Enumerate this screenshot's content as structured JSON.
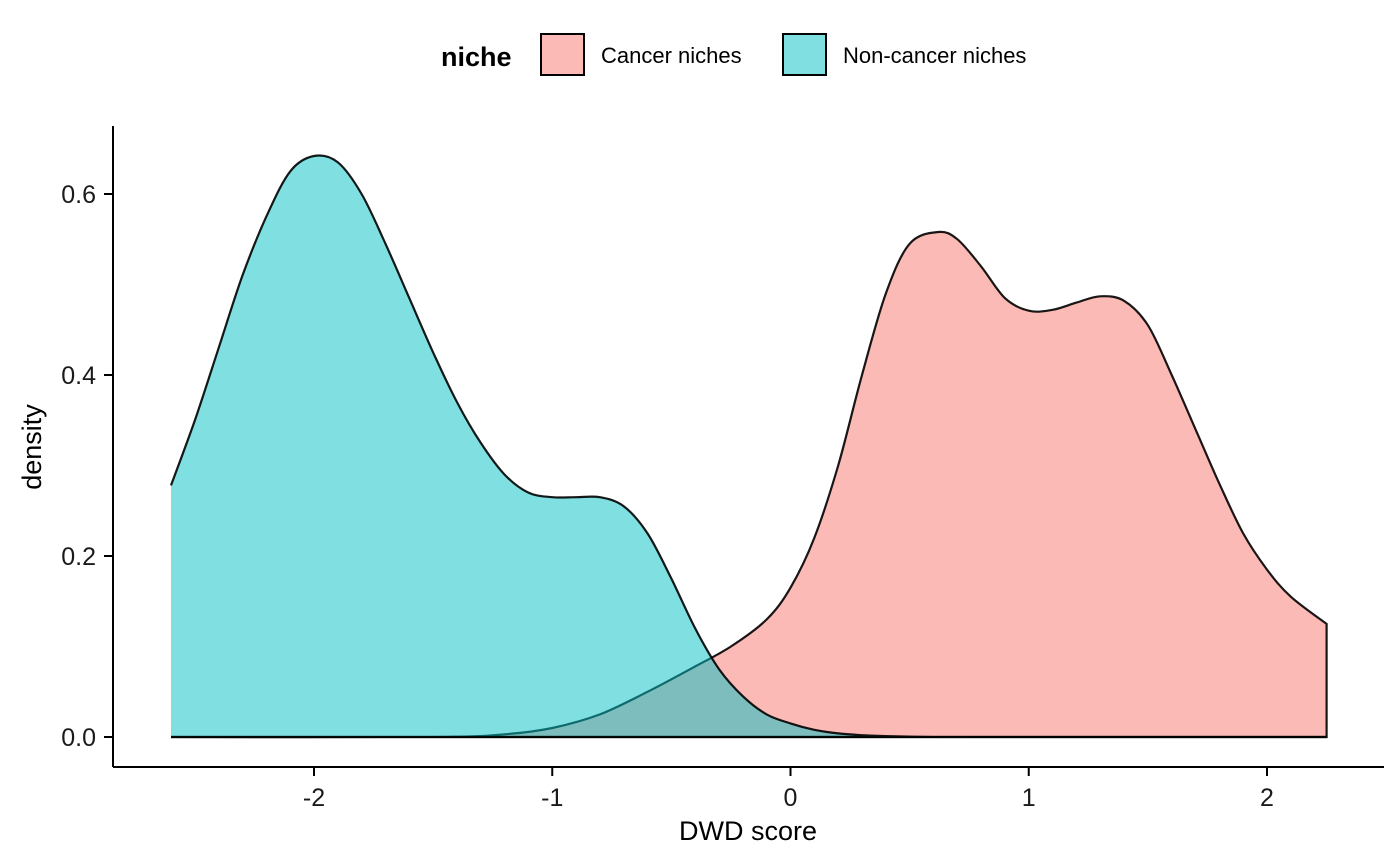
{
  "chart_data": {
    "type": "area",
    "xlabel": "DWD score",
    "ylabel": "density",
    "xlim": [
      -2.6,
      2.25
    ],
    "ylim": [
      0,
      0.66
    ],
    "x_ticks": [
      -2,
      -1,
      0,
      1,
      2
    ],
    "x_tick_labels": [
      "-2",
      "-1",
      "0",
      "1",
      "2"
    ],
    "y_ticks": [
      0.0,
      0.2,
      0.4,
      0.6
    ],
    "y_tick_labels": [
      "0.0",
      "0.2",
      "0.4",
      "0.6"
    ],
    "grid": false,
    "legend": {
      "title": "niche",
      "placement": "top"
    },
    "series": [
      {
        "name": "Cancer niches",
        "color": "#F8766D",
        "fill_opacity": 0.5,
        "x": [
          -2.6,
          -1.5,
          -1.2,
          -1.0,
          -0.8,
          -0.6,
          -0.4,
          -0.25,
          -0.1,
          0.0,
          0.1,
          0.2,
          0.3,
          0.4,
          0.5,
          0.62,
          0.7,
          0.8,
          0.9,
          1.0,
          1.1,
          1.2,
          1.3,
          1.4,
          1.5,
          1.6,
          1.7,
          1.8,
          1.9,
          2.0,
          2.1,
          2.25
        ],
        "y": [
          0.0,
          0.0,
          0.003,
          0.01,
          0.025,
          0.05,
          0.078,
          0.1,
          0.13,
          0.165,
          0.22,
          0.3,
          0.4,
          0.49,
          0.545,
          0.558,
          0.55,
          0.52,
          0.485,
          0.471,
          0.472,
          0.48,
          0.487,
          0.482,
          0.455,
          0.4,
          0.34,
          0.28,
          0.225,
          0.185,
          0.155,
          0.125
        ]
      },
      {
        "name": "Non-cancer niches",
        "color": "#00BFC4",
        "fill_opacity": 0.5,
        "x": [
          -2.6,
          -2.5,
          -2.4,
          -2.3,
          -2.2,
          -2.1,
          -2.0,
          -1.9,
          -1.8,
          -1.7,
          -1.6,
          -1.5,
          -1.4,
          -1.3,
          -1.2,
          -1.1,
          -1.0,
          -0.9,
          -0.8,
          -0.7,
          -0.6,
          -0.5,
          -0.4,
          -0.3,
          -0.2,
          -0.1,
          0.0,
          0.1,
          0.2,
          0.3,
          0.4,
          0.6,
          1.0,
          2.25
        ],
        "y": [
          0.278,
          0.35,
          0.43,
          0.51,
          0.575,
          0.625,
          0.642,
          0.635,
          0.6,
          0.545,
          0.485,
          0.425,
          0.37,
          0.325,
          0.29,
          0.27,
          0.265,
          0.265,
          0.265,
          0.255,
          0.225,
          0.175,
          0.12,
          0.075,
          0.045,
          0.025,
          0.015,
          0.008,
          0.004,
          0.002,
          0.001,
          0.0,
          0.0,
          0.0
        ]
      }
    ]
  }
}
